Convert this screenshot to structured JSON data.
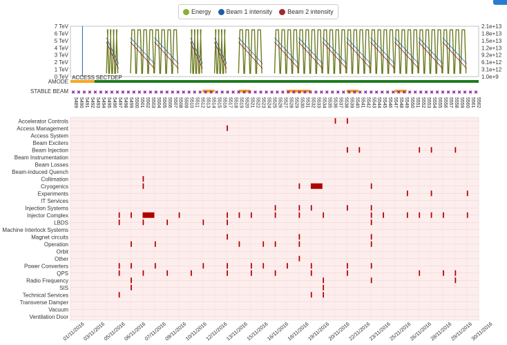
{
  "colors": {
    "energy": "#6b7a1f",
    "beam1": "#1f5fa8",
    "beam2": "#8b1a1a",
    "fault": "#b00000",
    "access": "#f5a623",
    "sectdep": "#1f7a1f",
    "stable": "#f5a623",
    "fill_marker": "#8a2a9e",
    "grid_bg": "#fdeeee",
    "legend_energy": "#8ab034",
    "legend_beam1": "#1f5fa8",
    "legend_beam2": "#a02a2a"
  },
  "legend": [
    {
      "key": "energy",
      "label": "Energy"
    },
    {
      "key": "beam1",
      "label": "Beam 1 intensity"
    },
    {
      "key": "beam2",
      "label": "Beam 2 intensity"
    }
  ],
  "chart_data": {
    "type": "line",
    "x_start": "2016-11-01",
    "x_end": "2016-12-05",
    "left_axis": {
      "ticks": [
        "0 TeV",
        "1 TeV",
        "2 TeV",
        "3 TeV",
        "4 TeV",
        "5 TeV",
        "6 TeV",
        "7 TeV"
      ],
      "ylim": [
        0,
        7
      ]
    },
    "right_axis": {
      "ticks": [
        "1.0e+9",
        "3.1e+12",
        "6.1e+12",
        "9.2e+12",
        "1.2e+13",
        "1.5e+13",
        "1.8e+13",
        "2.1e+13"
      ]
    },
    "energy_segments": [
      [
        "2016-11-04",
        "2016-11-05"
      ],
      [
        "2016-11-06",
        "2016-11-08"
      ],
      [
        "2016-11-08",
        "2016-11-10"
      ],
      [
        "2016-11-11",
        "2016-11-12"
      ],
      [
        "2016-11-13",
        "2016-11-14"
      ],
      [
        "2016-11-15",
        "2016-11-17"
      ],
      [
        "2016-11-18",
        "2016-11-20"
      ],
      [
        "2016-11-20",
        "2016-11-22"
      ],
      [
        "2016-11-22",
        "2016-11-24"
      ],
      [
        "2016-11-24",
        "2016-11-26"
      ],
      [
        "2016-11-26",
        "2016-11-28"
      ],
      [
        "2016-11-28",
        "2016-11-30"
      ],
      [
        "2016-11-30",
        "2016-12-02"
      ],
      [
        "2016-12-02",
        "2016-12-04"
      ]
    ],
    "mode_bands": [
      {
        "label": "AMODE",
        "segments": [
          {
            "name": "ACCESS",
            "start": "2016-11-01",
            "end": "2016-11-03",
            "color_key": "access"
          },
          {
            "name": "SECTDEP",
            "start": "2016-11-03",
            "end": "2016-12-05",
            "color_key": "sectdep"
          }
        ]
      },
      {
        "label": "STABLE BEAM",
        "segments": [
          {
            "name": "",
            "start": "2016-11-12",
            "end": "2016-11-13",
            "color_key": "stable"
          },
          {
            "name": "",
            "start": "2016-11-15",
            "end": "2016-11-16",
            "color_key": "stable"
          },
          {
            "name": "",
            "start": "2016-11-19",
            "end": "2016-11-21",
            "color_key": "stable"
          },
          {
            "name": "",
            "start": "2016-11-24",
            "end": "2016-11-25",
            "color_key": "stable"
          },
          {
            "name": "",
            "start": "2016-11-28",
            "end": "2016-11-29",
            "color_key": "stable"
          }
        ]
      }
    ],
    "fills": [
      "5489",
      "5490",
      "5491",
      "5492",
      "5493",
      "5494",
      "5495",
      "5496",
      "5497",
      "5498",
      "5499",
      "5500",
      "5501",
      "5502",
      "5503",
      "5504",
      "5505",
      "5506",
      "5507",
      "5508",
      "5509",
      "5510",
      "5511",
      "5512",
      "5513",
      "5514",
      "5515",
      "5516",
      "5517",
      "5518",
      "5519",
      "5520",
      "5521",
      "5522",
      "5523",
      "5524",
      "5525",
      "5526",
      "5527",
      "5528",
      "5529",
      "5530",
      "5531",
      "5532",
      "5533",
      "5534",
      "5535",
      "5536",
      "5537",
      "5538",
      "5539",
      "5540",
      "5541",
      "5542",
      "5543",
      "5544",
      "5545",
      "5546",
      "5547",
      "5548",
      "5549",
      "5550",
      "5551",
      "5552",
      "5553",
      "5554",
      "5555",
      "5556",
      "5557",
      "5558",
      "5559",
      "5560",
      "5561",
      "5562"
    ],
    "systems": [
      "Accelerator Controls",
      "Access Management",
      "Access System",
      "Beam Exciters",
      "Beam Injection",
      "Beam Instrumentation",
      "Beam Losses",
      "Beam-induced Quench",
      "Collimation",
      "Cryogenics",
      "Experiments",
      "IT Services",
      "Injection Systems",
      "Injector Complex",
      "LBDS",
      "Machine Interlock Systems",
      "Magnet circuits",
      "Operation",
      "Orbit",
      "Other",
      "Power Converters",
      "QPS",
      "Radio Frequency",
      "SIS",
      "Technical Services",
      "Transverse Damper",
      "Vacuum",
      "Ventilation Door"
    ],
    "x_tick_labels": [
      "01/11/2016",
      "03/11/2016",
      "05/11/2016",
      "06/11/2016",
      "07/11/2016",
      "09/11/2016",
      "10/11/2016",
      "12/11/2016",
      "13/11/2016",
      "15/11/2016",
      "16/11/2016",
      "18/11/2016",
      "19/11/2016",
      "20/11/2016",
      "22/11/2016",
      "23/11/2016",
      "25/11/2016",
      "26/11/2016",
      "28/11/2016",
      "29/11/2016",
      "30/11/2016"
    ],
    "faults": [
      {
        "system": "Accelerator Controls",
        "start": "2016-11-23",
        "end": "2016-11-23"
      },
      {
        "system": "Accelerator Controls",
        "start": "2016-11-24",
        "end": "2016-11-24"
      },
      {
        "system": "Access Management",
        "start": "2016-11-14",
        "end": "2016-11-14"
      },
      {
        "system": "Beam Injection",
        "start": "2016-11-24",
        "end": "2016-11-24"
      },
      {
        "system": "Beam Injection",
        "start": "2016-11-25",
        "end": "2016-11-25"
      },
      {
        "system": "Beam Injection",
        "start": "2016-11-30",
        "end": "2016-11-30"
      },
      {
        "system": "Beam Injection",
        "start": "2016-12-01",
        "end": "2016-12-01"
      },
      {
        "system": "Beam Injection",
        "start": "2016-12-03",
        "end": "2016-12-03"
      },
      {
        "system": "Collimation",
        "start": "2016-11-07",
        "end": "2016-11-07"
      },
      {
        "system": "Cryogenics",
        "start": "2016-11-07",
        "end": "2016-11-07"
      },
      {
        "system": "Cryogenics",
        "start": "2016-11-20",
        "end": "2016-11-20"
      },
      {
        "system": "Cryogenics",
        "start": "2016-11-21",
        "end": "2016-11-22"
      },
      {
        "system": "Cryogenics",
        "start": "2016-11-26",
        "end": "2016-11-26"
      },
      {
        "system": "Experiments",
        "start": "2016-11-29",
        "end": "2016-11-29"
      },
      {
        "system": "Experiments",
        "start": "2016-12-01",
        "end": "2016-12-01"
      },
      {
        "system": "Experiments",
        "start": "2016-12-04",
        "end": "2016-12-04"
      },
      {
        "system": "Injection Systems",
        "start": "2016-11-18",
        "end": "2016-11-18"
      },
      {
        "system": "Injection Systems",
        "start": "2016-11-20",
        "end": "2016-11-20"
      },
      {
        "system": "Injection Systems",
        "start": "2016-11-21",
        "end": "2016-11-21"
      },
      {
        "system": "Injection Systems",
        "start": "2016-11-24",
        "end": "2016-11-24"
      },
      {
        "system": "Injection Systems",
        "start": "2016-11-26",
        "end": "2016-11-26"
      },
      {
        "system": "Injector Complex",
        "start": "2016-11-05",
        "end": "2016-11-05"
      },
      {
        "system": "Injector Complex",
        "start": "2016-11-06",
        "end": "2016-11-06"
      },
      {
        "system": "Injector Complex",
        "start": "2016-11-07",
        "end": "2016-11-08"
      },
      {
        "system": "Injector Complex",
        "start": "2016-11-10",
        "end": "2016-11-10"
      },
      {
        "system": "Injector Complex",
        "start": "2016-11-14",
        "end": "2016-11-14"
      },
      {
        "system": "Injector Complex",
        "start": "2016-11-15",
        "end": "2016-11-15"
      },
      {
        "system": "Injector Complex",
        "start": "2016-11-16",
        "end": "2016-11-16"
      },
      {
        "system": "Injector Complex",
        "start": "2016-11-18",
        "end": "2016-11-18"
      },
      {
        "system": "Injector Complex",
        "start": "2016-11-20",
        "end": "2016-11-20"
      },
      {
        "system": "Injector Complex",
        "start": "2016-11-22",
        "end": "2016-11-22"
      },
      {
        "system": "Injector Complex",
        "start": "2016-11-26",
        "end": "2016-11-26"
      },
      {
        "system": "Injector Complex",
        "start": "2016-11-27",
        "end": "2016-11-27"
      },
      {
        "system": "Injector Complex",
        "start": "2016-11-29",
        "end": "2016-11-29"
      },
      {
        "system": "Injector Complex",
        "start": "2016-11-30",
        "end": "2016-11-30"
      },
      {
        "system": "Injector Complex",
        "start": "2016-12-01",
        "end": "2016-12-01"
      },
      {
        "system": "Injector Complex",
        "start": "2016-12-02",
        "end": "2016-12-02"
      },
      {
        "system": "Injector Complex",
        "start": "2016-12-04",
        "end": "2016-12-04"
      },
      {
        "system": "LBDS",
        "start": "2016-11-05",
        "end": "2016-11-05"
      },
      {
        "system": "LBDS",
        "start": "2016-11-07",
        "end": "2016-11-07"
      },
      {
        "system": "LBDS",
        "start": "2016-11-09",
        "end": "2016-11-09"
      },
      {
        "system": "LBDS",
        "start": "2016-11-12",
        "end": "2016-11-12"
      },
      {
        "system": "LBDS",
        "start": "2016-11-14",
        "end": "2016-11-14"
      },
      {
        "system": "LBDS",
        "start": "2016-11-26",
        "end": "2016-11-26"
      },
      {
        "system": "Magnet circuits",
        "start": "2016-11-14",
        "end": "2016-11-14"
      },
      {
        "system": "Magnet circuits",
        "start": "2016-11-20",
        "end": "2016-11-20"
      },
      {
        "system": "Magnet circuits",
        "start": "2016-11-26",
        "end": "2016-11-26"
      },
      {
        "system": "Operation",
        "start": "2016-11-06",
        "end": "2016-11-06"
      },
      {
        "system": "Operation",
        "start": "2016-11-08",
        "end": "2016-11-08"
      },
      {
        "system": "Operation",
        "start": "2016-11-15",
        "end": "2016-11-15"
      },
      {
        "system": "Operation",
        "start": "2016-11-17",
        "end": "2016-11-17"
      },
      {
        "system": "Operation",
        "start": "2016-11-18",
        "end": "2016-11-18"
      },
      {
        "system": "Operation",
        "start": "2016-11-20",
        "end": "2016-11-20"
      },
      {
        "system": "Operation",
        "start": "2016-11-26",
        "end": "2016-11-26"
      },
      {
        "system": "Other",
        "start": "2016-11-20",
        "end": "2016-11-20"
      },
      {
        "system": "Power Converters",
        "start": "2016-11-05",
        "end": "2016-11-05"
      },
      {
        "system": "Power Converters",
        "start": "2016-11-06",
        "end": "2016-11-06"
      },
      {
        "system": "Power Converters",
        "start": "2016-11-08",
        "end": "2016-11-08"
      },
      {
        "system": "Power Converters",
        "start": "2016-11-12",
        "end": "2016-11-12"
      },
      {
        "system": "Power Converters",
        "start": "2016-11-14",
        "end": "2016-11-14"
      },
      {
        "system": "Power Converters",
        "start": "2016-11-16",
        "end": "2016-11-16"
      },
      {
        "system": "Power Converters",
        "start": "2016-11-17",
        "end": "2016-11-17"
      },
      {
        "system": "Power Converters",
        "start": "2016-11-19",
        "end": "2016-11-19"
      },
      {
        "system": "Power Converters",
        "start": "2016-11-21",
        "end": "2016-11-21"
      },
      {
        "system": "Power Converters",
        "start": "2016-11-24",
        "end": "2016-11-24"
      },
      {
        "system": "Power Converters",
        "start": "2016-11-26",
        "end": "2016-11-26"
      },
      {
        "system": "QPS",
        "start": "2016-11-05",
        "end": "2016-11-05"
      },
      {
        "system": "QPS",
        "start": "2016-11-07",
        "end": "2016-11-07"
      },
      {
        "system": "QPS",
        "start": "2016-11-09",
        "end": "2016-11-09"
      },
      {
        "system": "QPS",
        "start": "2016-11-11",
        "end": "2016-11-11"
      },
      {
        "system": "QPS",
        "start": "2016-11-14",
        "end": "2016-11-14"
      },
      {
        "system": "QPS",
        "start": "2016-11-16",
        "end": "2016-11-16"
      },
      {
        "system": "QPS",
        "start": "2016-11-18",
        "end": "2016-11-18"
      },
      {
        "system": "QPS",
        "start": "2016-11-21",
        "end": "2016-11-21"
      },
      {
        "system": "QPS",
        "start": "2016-11-24",
        "end": "2016-11-24"
      },
      {
        "system": "QPS",
        "start": "2016-11-30",
        "end": "2016-11-30"
      },
      {
        "system": "QPS",
        "start": "2016-12-02",
        "end": "2016-12-02"
      },
      {
        "system": "QPS",
        "start": "2016-12-03",
        "end": "2016-12-03"
      },
      {
        "system": "Radio Frequency",
        "start": "2016-11-06",
        "end": "2016-11-06"
      },
      {
        "system": "Radio Frequency",
        "start": "2016-11-22",
        "end": "2016-11-22"
      },
      {
        "system": "Radio Frequency",
        "start": "2016-11-26",
        "end": "2016-11-26"
      },
      {
        "system": "Radio Frequency",
        "start": "2016-12-03",
        "end": "2016-12-03"
      },
      {
        "system": "SIS",
        "start": "2016-11-06",
        "end": "2016-11-06"
      },
      {
        "system": "SIS",
        "start": "2016-11-22",
        "end": "2016-11-22"
      },
      {
        "system": "Technical Services",
        "start": "2016-11-05",
        "end": "2016-11-05"
      },
      {
        "system": "Technical Services",
        "start": "2016-11-21",
        "end": "2016-11-21"
      },
      {
        "system": "Technical Services",
        "start": "2016-11-22",
        "end": "2016-11-22"
      }
    ]
  }
}
